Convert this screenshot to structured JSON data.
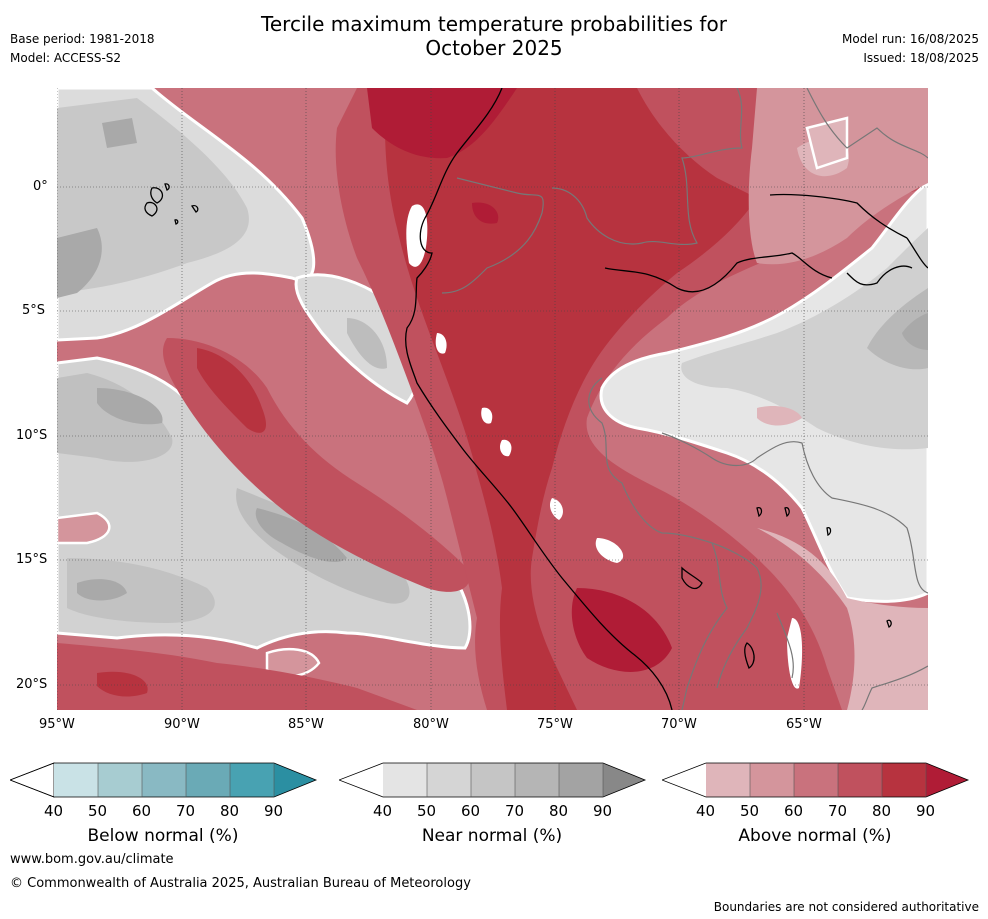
{
  "header": {
    "title_line1": "Tercile maximum temperature probabilities for",
    "title_line2": "October 2025",
    "base_period": "Base period: 1981-2018",
    "model": "Model: ACCESS-S2",
    "model_run": "Model run: 16/08/2025",
    "issued": "Issued: 18/08/2025"
  },
  "map": {
    "lat_labels": [
      "0°",
      "5°S",
      "10°S",
      "15°S",
      "20°S"
    ],
    "lon_labels": [
      "95°W",
      "90°W",
      "85°W",
      "80°W",
      "75°W",
      "70°W",
      "65°W"
    ]
  },
  "colorbars": [
    {
      "name": "Below normal (%)",
      "ticks": [
        "40",
        "50",
        "60",
        "70",
        "80",
        "90"
      ],
      "colors": [
        "#ffffff",
        "#c9e2e6",
        "#a7ccd1",
        "#89b9c3",
        "#6aaab6",
        "#48a2b2",
        "#2b8fa2"
      ]
    },
    {
      "name": "Near normal (%)",
      "ticks": [
        "40",
        "50",
        "60",
        "70",
        "80",
        "90"
      ],
      "colors": [
        "#ffffff",
        "#e4e4e4",
        "#d5d5d5",
        "#c5c5c5",
        "#b5b5b5",
        "#a3a3a3",
        "#888888"
      ]
    },
    {
      "name": "Above normal (%)",
      "ticks": [
        "40",
        "50",
        "60",
        "70",
        "80",
        "90"
      ],
      "colors": [
        "#ffffff",
        "#dfb5ba",
        "#d4959c",
        "#c9727d",
        "#c0515e",
        "#b7333f",
        "#b01c36"
      ]
    }
  ],
  "footer": {
    "url": "www.bom.gov.au/climate",
    "copyright": "© Commonwealth of Australia 2025, Australian Bureau of Meteorology",
    "disclaimer": "Boundaries are not considered authoritative"
  }
}
